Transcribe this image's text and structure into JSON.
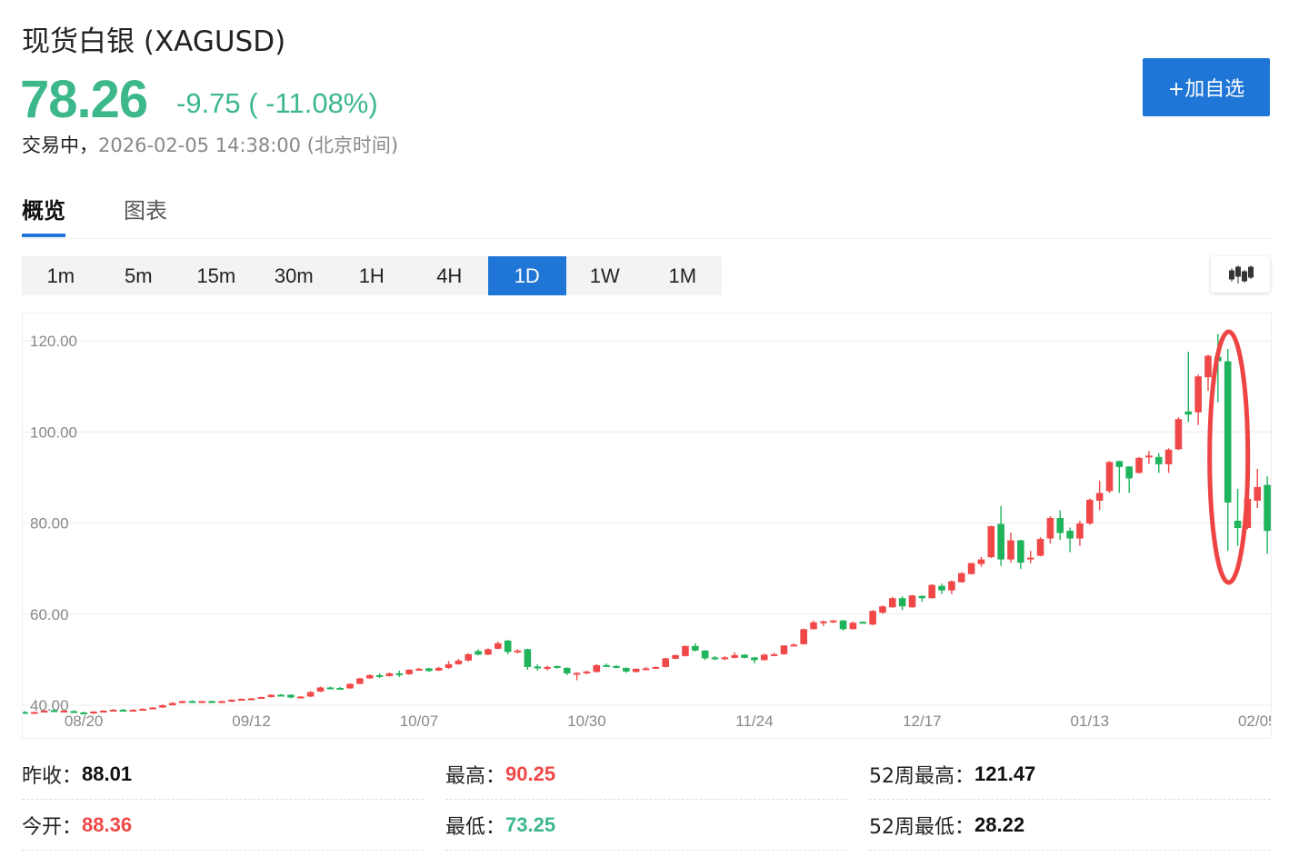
{
  "header": {
    "title": "现货白银 (XAGUSD)",
    "price": "78.26",
    "change": "-9.75 ( -11.08%)",
    "status_label": "交易中，",
    "timestamp": "2026-02-05 14:38:00 (北京时间)",
    "add_watchlist_label": "+加自选"
  },
  "tabs": [
    {
      "label": "概览",
      "active": true
    },
    {
      "label": "图表",
      "active": false
    }
  ],
  "periods": [
    {
      "label": "1m"
    },
    {
      "label": "5m"
    },
    {
      "label": "15m"
    },
    {
      "label": "30m"
    },
    {
      "label": "1H"
    },
    {
      "label": "4H"
    },
    {
      "label": "1D",
      "active": true
    },
    {
      "label": "1W"
    },
    {
      "label": "1M"
    }
  ],
  "chart_type_icon": "candlestick-icon",
  "colors": {
    "up": "#f04848",
    "down": "#1fb35c",
    "accent": "#1f76d6",
    "price": "#3cb88a",
    "annotation": "#ee4444"
  },
  "chart_data": {
    "type": "candlestick",
    "ylim": [
      40,
      120
    ],
    "y_ticks": [
      "120.00",
      "100.00",
      "80.00",
      "60.00",
      "40.00"
    ],
    "y_tick_values": [
      120,
      100,
      80,
      60,
      40
    ],
    "x_ticks": [
      {
        "label": "08/20",
        "index": 6
      },
      {
        "label": "09/12",
        "index": 23
      },
      {
        "label": "10/07",
        "index": 40
      },
      {
        "label": "10/30",
        "index": 57
      },
      {
        "label": "11/24",
        "index": 74
      },
      {
        "label": "12/17",
        "index": 91
      },
      {
        "label": "01/13",
        "index": 108
      },
      {
        "label": "02/05",
        "index": 125
      }
    ],
    "grid": true,
    "annotation": "red-ellipse-around-crash-candles",
    "ohlc": [
      [
        38.5,
        38.7,
        38.2,
        38.3
      ],
      [
        38.3,
        38.6,
        38.1,
        38.5
      ],
      [
        38.6,
        38.9,
        38.4,
        38.8
      ],
      [
        38.9,
        39.2,
        38.6,
        38.7
      ],
      [
        38.7,
        38.9,
        38.5,
        38.8
      ],
      [
        38.7,
        38.9,
        38.4,
        38.5
      ],
      [
        38.4,
        38.6,
        38.2,
        38.3
      ],
      [
        38.2,
        38.7,
        38.1,
        38.6
      ],
      [
        38.6,
        38.9,
        38.5,
        38.8
      ],
      [
        38.9,
        39.2,
        38.7,
        39.0
      ],
      [
        39.0,
        39.2,
        38.8,
        38.9
      ],
      [
        38.9,
        39.1,
        38.7,
        39.0
      ],
      [
        39.0,
        39.3,
        38.8,
        39.2
      ],
      [
        39.2,
        39.6,
        39.1,
        39.5
      ],
      [
        39.5,
        40.2,
        39.4,
        40.0
      ],
      [
        40.0,
        40.7,
        39.9,
        40.5
      ],
      [
        40.5,
        41.0,
        40.4,
        40.9
      ],
      [
        40.9,
        41.1,
        40.6,
        40.8
      ],
      [
        40.8,
        41.0,
        40.6,
        40.9
      ],
      [
        40.9,
        41.0,
        40.7,
        40.8
      ],
      [
        40.8,
        41.0,
        40.6,
        40.9
      ],
      [
        40.9,
        41.3,
        40.7,
        41.2
      ],
      [
        41.1,
        41.5,
        41.0,
        41.4
      ],
      [
        41.4,
        41.6,
        41.2,
        41.5
      ],
      [
        41.5,
        41.9,
        41.4,
        41.8
      ],
      [
        41.8,
        42.4,
        41.7,
        42.3
      ],
      [
        42.3,
        42.5,
        42.0,
        42.2
      ],
      [
        42.3,
        42.4,
        41.5,
        41.7
      ],
      [
        41.7,
        42.0,
        41.5,
        41.9
      ],
      [
        41.9,
        43.1,
        41.8,
        42.9
      ],
      [
        43.0,
        44.1,
        42.9,
        43.9
      ],
      [
        43.9,
        44.1,
        43.6,
        43.8
      ],
      [
        43.8,
        44.0,
        43.5,
        43.7
      ],
      [
        43.7,
        44.8,
        43.6,
        44.7
      ],
      [
        44.7,
        46.0,
        44.6,
        45.9
      ],
      [
        45.9,
        46.8,
        45.8,
        46.6
      ],
      [
        46.6,
        47.0,
        46.0,
        46.4
      ],
      [
        46.4,
        47.2,
        46.3,
        47.0
      ],
      [
        47.0,
        47.6,
        46.2,
        46.8
      ],
      [
        46.8,
        47.9,
        46.7,
        47.8
      ],
      [
        47.8,
        48.2,
        47.6,
        48.0
      ],
      [
        48.1,
        48.2,
        47.3,
        47.5
      ],
      [
        47.6,
        48.4,
        47.5,
        48.2
      ],
      [
        48.2,
        49.7,
        48.0,
        49.0
      ],
      [
        49.0,
        50.2,
        48.9,
        49.8
      ],
      [
        49.8,
        51.4,
        49.6,
        51.2
      ],
      [
        51.9,
        52.3,
        51.0,
        51.1
      ],
      [
        51.1,
        52.5,
        51.0,
        52.3
      ],
      [
        52.4,
        54.0,
        52.3,
        53.6
      ],
      [
        54.2,
        54.3,
        51.2,
        51.7
      ],
      [
        51.7,
        52.3,
        51.4,
        52.0
      ],
      [
        52.3,
        52.4,
        47.8,
        48.4
      ],
      [
        48.5,
        49.0,
        47.6,
        48.2
      ],
      [
        48.1,
        48.7,
        47.6,
        48.4
      ],
      [
        48.6,
        48.7,
        48.0,
        48.5
      ],
      [
        48.2,
        48.3,
        46.6,
        47.0
      ],
      [
        47.0,
        47.2,
        45.5,
        47.1
      ],
      [
        47.0,
        47.6,
        46.8,
        47.4
      ],
      [
        47.3,
        49.0,
        47.2,
        48.8
      ],
      [
        48.8,
        49.2,
        48.4,
        48.7
      ],
      [
        48.6,
        48.8,
        48.1,
        48.3
      ],
      [
        48.2,
        48.3,
        47.1,
        47.4
      ],
      [
        47.3,
        48.1,
        47.2,
        48.0
      ],
      [
        47.9,
        48.4,
        47.7,
        48.1
      ],
      [
        48.1,
        48.5,
        48.0,
        48.4
      ],
      [
        48.4,
        50.4,
        48.3,
        50.3
      ],
      [
        50.2,
        51.1,
        50.1,
        51.0
      ],
      [
        50.8,
        53.1,
        50.7,
        53.0
      ],
      [
        53.0,
        53.6,
        51.8,
        52.0
      ],
      [
        52.0,
        52.1,
        49.9,
        50.3
      ],
      [
        50.5,
        50.8,
        49.9,
        50.3
      ],
      [
        50.3,
        50.8,
        49.9,
        50.5
      ],
      [
        50.4,
        51.6,
        50.3,
        51.0
      ],
      [
        51.1,
        51.2,
        50.3,
        50.4
      ],
      [
        50.5,
        50.6,
        49.2,
        49.9
      ],
      [
        49.9,
        51.3,
        49.8,
        51.1
      ],
      [
        51.0,
        51.5,
        50.8,
        51.2
      ],
      [
        51.2,
        53.2,
        51.1,
        53.1
      ],
      [
        53.1,
        53.6,
        52.9,
        53.3
      ],
      [
        53.4,
        56.8,
        53.3,
        56.7
      ],
      [
        56.7,
        58.6,
        56.6,
        58.2
      ],
      [
        58.2,
        58.6,
        57.4,
        58.4
      ],
      [
        58.3,
        58.7,
        58.0,
        58.6
      ],
      [
        58.6,
        58.7,
        56.4,
        56.7
      ],
      [
        56.7,
        58.4,
        56.6,
        58.1
      ],
      [
        58.3,
        58.4,
        58.0,
        58.2
      ],
      [
        57.7,
        60.9,
        57.6,
        60.7
      ],
      [
        60.3,
        61.9,
        60.1,
        61.7
      ],
      [
        61.5,
        63.8,
        61.4,
        63.5
      ],
      [
        63.5,
        63.9,
        60.9,
        61.7
      ],
      [
        61.5,
        64.2,
        61.4,
        64.1
      ],
      [
        64.0,
        64.1,
        62.7,
        63.5
      ],
      [
        63.5,
        66.6,
        63.4,
        66.4
      ],
      [
        66.2,
        66.7,
        64.4,
        65.2
      ],
      [
        65.2,
        67.4,
        64.4,
        67.2
      ],
      [
        67.0,
        69.2,
        66.9,
        69.0
      ],
      [
        68.8,
        71.3,
        68.7,
        71.2
      ],
      [
        71.0,
        72.6,
        70.4,
        72.0
      ],
      [
        72.5,
        79.4,
        72.3,
        79.3
      ],
      [
        79.8,
        83.7,
        70.6,
        72.0
      ],
      [
        72.0,
        77.9,
        71.3,
        76.2
      ],
      [
        76.2,
        76.3,
        69.9,
        71.3
      ],
      [
        72.3,
        73.9,
        71.2,
        72.4
      ],
      [
        72.8,
        76.9,
        72.7,
        76.5
      ],
      [
        76.6,
        81.5,
        75.5,
        81.1
      ],
      [
        81.1,
        82.8,
        76.3,
        77.8
      ],
      [
        78.3,
        79.0,
        73.6,
        76.6
      ],
      [
        76.6,
        80.5,
        75.0,
        79.9
      ],
      [
        79.9,
        85.4,
        79.6,
        85.1
      ],
      [
        84.9,
        89.3,
        82.8,
        86.6
      ],
      [
        87.0,
        93.6,
        86.6,
        93.4
      ],
      [
        93.6,
        93.7,
        86.6,
        92.3
      ],
      [
        92.4,
        92.5,
        86.6,
        89.8
      ],
      [
        91.0,
        94.5,
        90.9,
        94.3
      ],
      [
        94.6,
        95.8,
        93.0,
        94.8
      ],
      [
        94.5,
        95.3,
        91.0,
        92.9
      ],
      [
        92.9,
        96.4,
        91.0,
        96.1
      ],
      [
        96.2,
        103.2,
        96.0,
        102.8
      ],
      [
        104.5,
        117.6,
        102.2,
        103.8
      ],
      [
        104.3,
        112.6,
        101.5,
        112.2
      ],
      [
        112.0,
        117.0,
        109.0,
        116.7
      ],
      [
        116.5,
        121.5,
        106.5,
        115.5
      ],
      [
        115.5,
        118.2,
        73.9,
        84.5
      ],
      [
        80.5,
        87.5,
        75.0,
        78.9
      ],
      [
        78.9,
        88.5,
        78.6,
        85.3
      ],
      [
        84.9,
        91.9,
        83.3,
        87.9
      ],
      [
        88.36,
        90.25,
        73.25,
        78.26
      ]
    ]
  },
  "stats": [
    {
      "label": "昨收：",
      "value": "88.01",
      "tone": "neutral"
    },
    {
      "label": "最高：",
      "value": "90.25",
      "tone": "up"
    },
    {
      "label": "52周最高：",
      "value": "121.47",
      "tone": "neutral"
    },
    {
      "label": "今开：",
      "value": "88.36",
      "tone": "up"
    },
    {
      "label": "最低：",
      "value": "73.25",
      "tone": "down"
    },
    {
      "label": "52周最低：",
      "value": "28.22",
      "tone": "neutral"
    }
  ]
}
